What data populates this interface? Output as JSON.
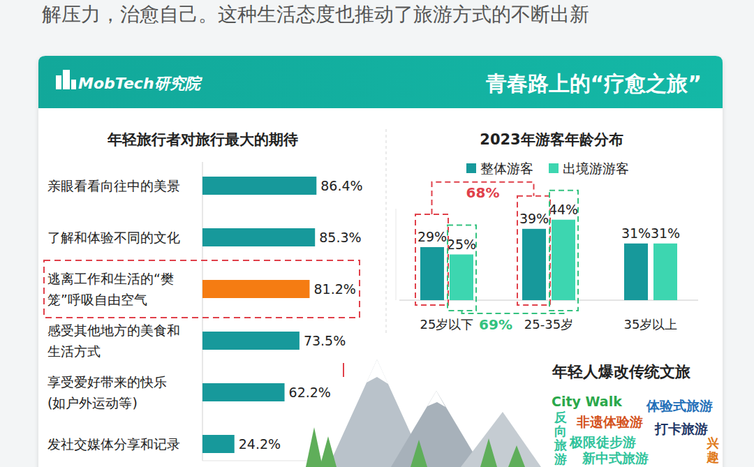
{
  "intro": "解压力，治愈自己。这种生活态度也推动了旅游方式的不断出新",
  "panel": {
    "brand": "MobTech研究院",
    "title": "青春路上的“疗愈之旅”"
  },
  "chart_data": [
    {
      "type": "bar",
      "orientation": "horizontal",
      "title": "年轻旅行者对旅行最大的期待",
      "categories": [
        "亲眼看看向往中的美景",
        "了解和体验不同的文化",
        "逃离工作和生活的“樊笼”呼吸自由空气",
        "感受其他地方的美食和生活方式",
        "享受爱好带来的快乐(如户外运动等)",
        "发社交媒体分享和记录"
      ],
      "values": [
        86.4,
        85.3,
        81.2,
        73.5,
        62.2,
        24.2
      ],
      "value_labels": [
        "86.4%",
        "85.3%",
        "81.2%",
        "73.5%",
        "62.2%",
        "24.2%"
      ],
      "colors": [
        "#17999b",
        "#17999b",
        "#f57c12",
        "#17999b",
        "#17999b",
        "#17999b"
      ],
      "xlim": [
        0,
        100
      ],
      "data_labels": true,
      "tick_labels": "y"
    },
    {
      "type": "bar",
      "title": "2023年游客年龄分布",
      "categories": [
        "25岁以下",
        "25-35岁",
        "35岁以上"
      ],
      "series": [
        {
          "name": "整体游客",
          "color": "#17999b",
          "values": [
            29,
            39,
            31
          ],
          "value_labels": [
            "29%",
            "39%",
            "31%"
          ]
        },
        {
          "name": "出境游游客",
          "color": "#3dd6b0",
          "values": [
            25,
            44,
            31
          ],
          "value_labels": [
            "25%",
            "44%",
            "31%"
          ]
        }
      ],
      "ylim": [
        0,
        50
      ],
      "data_labels": true,
      "tick_labels": "x",
      "legend": "top",
      "annotations": [
        "68%",
        "69%"
      ]
    }
  ],
  "tags": {
    "title": "年轻人爆改传统文旅",
    "items": [
      {
        "text": "City Walk",
        "color": "#2aa84a"
      },
      {
        "text": "体验式旅游",
        "color": "#1f6fb8"
      },
      {
        "text": "非遗体验游",
        "color": "#d4521c"
      },
      {
        "text": "打卡旅游",
        "color": "#1d3566"
      },
      {
        "text": "反向旅游",
        "color": "#2fc39b"
      },
      {
        "text": "极限徒步游",
        "color": "#2fc39b"
      },
      {
        "text": "兴趣",
        "color": "#e07a1a"
      },
      {
        "text": "新中式旅游",
        "color": "#2fc39b"
      }
    ]
  }
}
